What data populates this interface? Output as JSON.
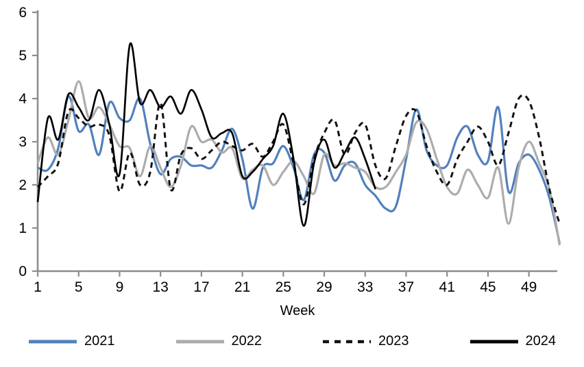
{
  "chart_data": {
    "type": "line",
    "title": "",
    "xlabel": "Week",
    "ylabel": "",
    "x_axis": {
      "label": "Week",
      "min": 1,
      "max": 52,
      "tick_labels": [
        1,
        5,
        9,
        13,
        17,
        21,
        25,
        29,
        33,
        37,
        41,
        45,
        49
      ],
      "grid": false
    },
    "y_axis": {
      "min": 0,
      "max": 6,
      "tick_labels": [
        0,
        1,
        2,
        3,
        4,
        5,
        6
      ],
      "grid": false
    },
    "legend_position": "bottom",
    "axis_color": "#8c8c8c",
    "series": [
      {
        "name": "2021",
        "color": "#5181bc",
        "style": "solid",
        "width": 3.2,
        "start_week": 1,
        "values": [
          2.4,
          2.35,
          2.85,
          4.05,
          3.25,
          3.4,
          2.7,
          3.9,
          3.55,
          3.5,
          4.0,
          2.95,
          2.25,
          2.6,
          2.65,
          2.45,
          2.45,
          2.4,
          2.8,
          3.3,
          2.6,
          1.45,
          2.4,
          2.5,
          2.9,
          2.4,
          1.65,
          2.7,
          2.75,
          2.1,
          2.45,
          2.5,
          2.0,
          1.75,
          1.45,
          1.5,
          2.6,
          3.75,
          2.8,
          2.45,
          2.45,
          3.1,
          3.35,
          2.7,
          2.55,
          3.8,
          1.85,
          2.5,
          2.7,
          2.35,
          1.7,
          0.65
        ]
      },
      {
        "name": "2022",
        "color": "#acacac",
        "style": "solid",
        "width": 3.2,
        "start_week": 1,
        "values": [
          2.5,
          3.1,
          2.7,
          3.5,
          4.4,
          3.55,
          3.8,
          3.4,
          2.9,
          2.85,
          2.2,
          2.9,
          2.4,
          1.95,
          2.45,
          3.35,
          3.0,
          3.05,
          2.75,
          2.85,
          2.15,
          2.35,
          2.45,
          2.0,
          2.3,
          2.55,
          2.2,
          1.8,
          2.7,
          2.45,
          2.5,
          2.4,
          2.3,
          1.95,
          1.95,
          2.3,
          2.7,
          3.45,
          3.3,
          2.6,
          1.95,
          1.8,
          2.35,
          2.0,
          1.7,
          2.4,
          1.1,
          2.4,
          3.0,
          2.5,
          1.9,
          0.6
        ]
      },
      {
        "name": "2023",
        "color": "#111111",
        "style": "dashed",
        "width": 3,
        "start_week": 1,
        "values": [
          1.95,
          2.2,
          2.5,
          3.7,
          3.55,
          3.35,
          3.4,
          3.15,
          1.85,
          2.75,
          2.0,
          2.3,
          3.9,
          1.9,
          2.7,
          2.85,
          2.6,
          2.8,
          3.0,
          2.9,
          2.8,
          2.95,
          2.65,
          3.0,
          3.4,
          2.5,
          1.55,
          2.6,
          3.2,
          3.5,
          2.7,
          3.2,
          3.4,
          2.45,
          2.15,
          2.9,
          3.6,
          3.7,
          2.9,
          2.3,
          2.0,
          2.6,
          3.0,
          3.35,
          3.0,
          2.45,
          3.2,
          4.0,
          3.95,
          3.1,
          1.9,
          1.1
        ]
      },
      {
        "name": "2024",
        "color": "#000000",
        "style": "solid",
        "width": 2.7,
        "start_week": 1,
        "values": [
          1.6,
          3.55,
          3.05,
          4.1,
          3.8,
          3.5,
          4.2,
          3.4,
          2.25,
          5.25,
          3.9,
          4.2,
          3.8,
          4.05,
          3.65,
          4.2,
          3.75,
          3.1,
          3.2,
          3.2,
          2.2,
          2.3,
          2.6,
          2.9,
          3.65,
          2.6,
          1.05,
          2.5,
          3.05,
          2.4,
          2.75,
          3.1,
          2.6,
          1.9
        ]
      }
    ]
  }
}
